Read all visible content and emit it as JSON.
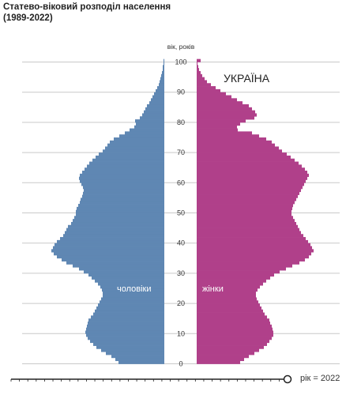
{
  "header": {
    "title_line1": "Статево-віковий розподіл населення",
    "title_line2": "(1989-2022)"
  },
  "chart_data": {
    "type": "bar",
    "title": "Статево-віковий розподіл населення (1989-2022)",
    "region_label": "УКРАЇНА",
    "age_axis_label": "вік, років",
    "age_ticks": [
      0,
      10,
      20,
      30,
      40,
      50,
      60,
      70,
      80,
      90,
      100
    ],
    "age_range": [
      0,
      101
    ],
    "ages": [
      0,
      1,
      2,
      3,
      4,
      5,
      6,
      7,
      8,
      9,
      10,
      11,
      12,
      13,
      14,
      15,
      16,
      17,
      18,
      19,
      20,
      21,
      22,
      23,
      24,
      25,
      26,
      27,
      28,
      29,
      30,
      31,
      32,
      33,
      34,
      35,
      36,
      37,
      38,
      39,
      40,
      41,
      42,
      43,
      44,
      45,
      46,
      47,
      48,
      49,
      50,
      51,
      52,
      53,
      54,
      55,
      56,
      57,
      58,
      59,
      60,
      61,
      62,
      63,
      64,
      65,
      66,
      67,
      68,
      69,
      70,
      71,
      72,
      73,
      74,
      75,
      76,
      77,
      78,
      79,
      80,
      81,
      82,
      83,
      84,
      85,
      86,
      87,
      88,
      89,
      90,
      91,
      92,
      93,
      94,
      95,
      96,
      97,
      98,
      99,
      100
    ],
    "series": [
      {
        "name": "чоловіки",
        "color": "#5f87b3",
        "values": [
          58,
          62,
          67,
          74,
          80,
          86,
          90,
          94,
          97,
          99,
          100,
          99,
          98,
          97,
          96,
          93,
          90,
          88,
          86,
          84,
          82,
          80,
          78,
          78,
          79,
          81,
          84,
          88,
          92,
          96,
          102,
          108,
          116,
          124,
          130,
          136,
          140,
          143,
          141,
          139,
          136,
          132,
          128,
          126,
          124,
          122,
          118,
          116,
          114,
          112,
          112,
          111,
          109,
          107,
          106,
          104,
          103,
          102,
          103,
          105,
          107,
          108,
          107,
          104,
          101,
          98,
          95,
          91,
          87,
          83,
          78,
          75,
          72,
          69,
          64,
          57,
          50,
          44,
          38,
          36,
          37,
          31,
          28,
          26,
          24,
          22,
          19,
          17,
          15,
          13,
          11,
          9,
          7,
          6,
          5,
          4,
          3,
          2,
          2,
          1,
          1
        ]
      },
      {
        "name": "жінки",
        "color": "#b0408a",
        "values": [
          55,
          60,
          66,
          73,
          79,
          85,
          89,
          92,
          95,
          97,
          97,
          96,
          95,
          93,
          92,
          89,
          86,
          84,
          82,
          80,
          78,
          76,
          75,
          75,
          77,
          80,
          84,
          88,
          93,
          98,
          105,
          113,
          121,
          130,
          137,
          142,
          145,
          148,
          146,
          144,
          141,
          138,
          135,
          132,
          130,
          128,
          126,
          124,
          122,
          120,
          120,
          121,
          122,
          124,
          126,
          128,
          130,
          132,
          134,
          136,
          138,
          140,
          142,
          140,
          137,
          133,
          129,
          124,
          119,
          114,
          108,
          104,
          99,
          95,
          88,
          79,
          70,
          52,
          51,
          55,
          62,
          73,
          76,
          74,
          70,
          66,
          58,
          51,
          44,
          37,
          30,
          24,
          18,
          13,
          10,
          7,
          5,
          3,
          2,
          1,
          5
        ]
      }
    ],
    "series_labels": {
      "male": "чоловіки",
      "female": "жінки"
    },
    "timeline": {
      "value_label": "рік = 2022",
      "start": 1989,
      "end": 2022,
      "current": 2022
    },
    "grid": true,
    "legend": "inside-bars"
  }
}
